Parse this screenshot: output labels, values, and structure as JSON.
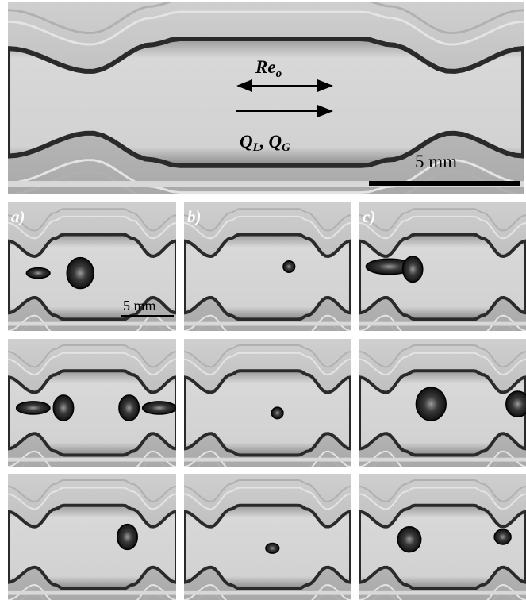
{
  "figure": {
    "top_panel": {
      "reynolds": "Re",
      "reynolds_subscript": "o",
      "flow_liquid": "Q",
      "flow_liquid_subscript": "L",
      "separator": ",",
      "flow_gas": "Q",
      "flow_gas_subscript": "G",
      "scale_bar": "5 mm"
    },
    "columns": [
      {
        "label": "a)"
      },
      {
        "label": "b)"
      },
      {
        "label": "c)"
      }
    ],
    "grid_scale_bar": "5 mm"
  }
}
